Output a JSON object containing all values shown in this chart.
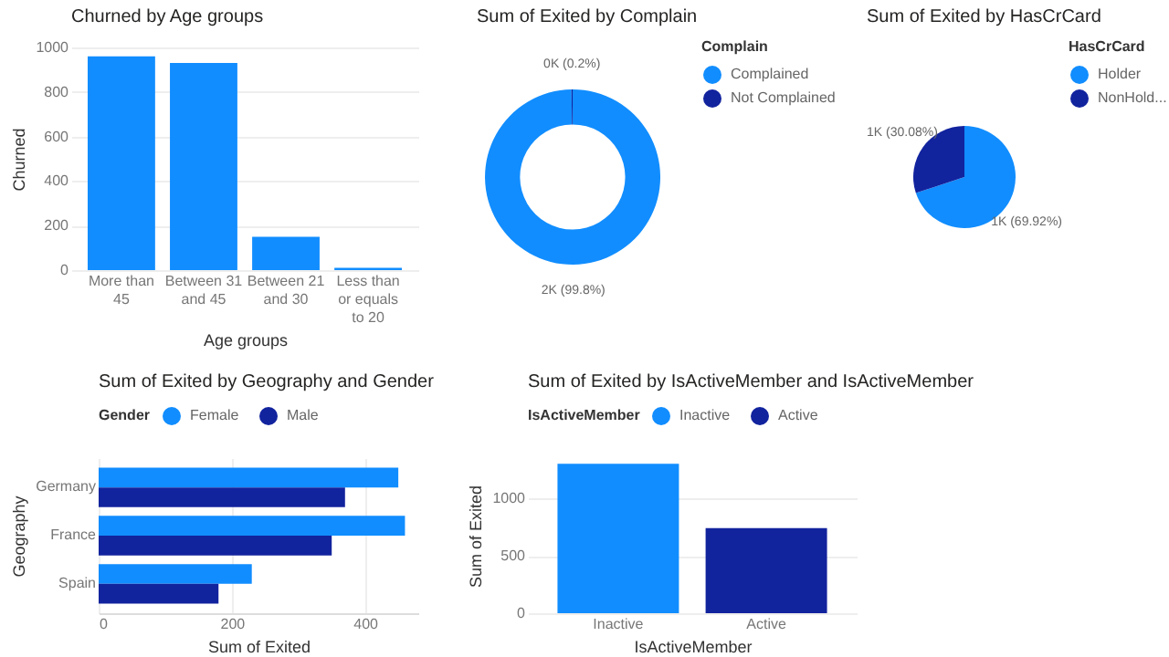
{
  "chart_data": [
    {
      "type": "bar",
      "title": "Churned by Age groups",
      "xlabel": "Age groups",
      "ylabel": "Churned",
      "categories": [
        "More than 45",
        "Between 31 and 45",
        "Between 21 and 30",
        "Less than or equals to 20"
      ],
      "values": [
        960,
        930,
        150,
        10
      ],
      "color": "#118dff",
      "ylim": [
        0,
        1000
      ],
      "yticks": [
        0,
        200,
        400,
        600,
        800,
        1000
      ],
      "grid": "y"
    },
    {
      "type": "donut",
      "title": "Sum of Exited by Complain",
      "legend_title": "Complain",
      "legend": "right",
      "categories": [
        "Complained",
        "Not Complained"
      ],
      "values": [
        99.8,
        0.2
      ],
      "value_labels": [
        "2K (99.8%)",
        "0K (0.2%)"
      ],
      "colors": [
        "#118dff",
        "#12239e"
      ]
    },
    {
      "type": "pie",
      "title": "Sum of Exited by HasCrCard",
      "legend_title": "HasCrCard",
      "legend": "right",
      "categories": [
        "Holder",
        "NonHold..."
      ],
      "values": [
        69.92,
        30.08
      ],
      "value_labels": [
        "1K (69.92%)",
        "1K (30.08%)"
      ],
      "colors": [
        "#118dff",
        "#12239e"
      ]
    },
    {
      "type": "bar",
      "orientation": "horizontal",
      "title": "Sum of Exited by Geography and Gender",
      "legend_title": "Gender",
      "legend": "top left",
      "xlabel": "Sum of Exited",
      "ylabel": "Geography",
      "categories": [
        "Germany",
        "France",
        "Spain"
      ],
      "series": [
        {
          "name": "Female",
          "color": "#118dff",
          "values": [
            450,
            460,
            230
          ]
        },
        {
          "name": "Male",
          "color": "#12239e",
          "values": [
            370,
            350,
            180
          ]
        }
      ],
      "xlim": [
        0,
        480
      ],
      "xticks": [
        0,
        200,
        400
      ],
      "grid": "x"
    },
    {
      "type": "bar",
      "title": "Sum of Exited by IsActiveMember and IsActiveMember",
      "legend_title": "IsActiveMember",
      "legend": "top",
      "xlabel": "IsActiveMember",
      "ylabel": "Sum of Exited",
      "categories": [
        "Inactive",
        "Active"
      ],
      "stacked": true,
      "series": [
        {
          "name": "Inactive",
          "color": "#118dff",
          "values": [
            1300,
            null
          ]
        },
        {
          "name": "Active",
          "color": "#12239e",
          "values": [
            null,
            740
          ]
        }
      ],
      "ylim": [
        0,
        1350
      ],
      "yticks": [
        0,
        500,
        1000
      ],
      "grid": "y"
    }
  ]
}
